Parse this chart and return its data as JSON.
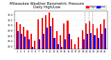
{
  "title": "Milwaukee Weather Barometric Pressure",
  "subtitle": "Daily High/Low",
  "background_color": "#ffffff",
  "bar_width": 0.4,
  "ylim": [
    29.1,
    30.55
  ],
  "ytick_labels": [
    "29.2",
    "29.4",
    "29.6",
    "29.8",
    "30.0",
    "30.2",
    "30.4"
  ],
  "ytick_values": [
    29.2,
    29.4,
    29.6,
    29.8,
    30.0,
    30.2,
    30.4
  ],
  "high_color": "#ff0000",
  "low_color": "#0000ff",
  "dashed_line_color": "#999999",
  "categories": [
    "1",
    "2",
    "3",
    "4",
    "5",
    "6",
    "7",
    "8",
    "9",
    "10",
    "11",
    "12",
    "13",
    "14",
    "15",
    "16",
    "17",
    "18",
    "19",
    "20",
    "21",
    "22",
    "23",
    "24",
    "25"
  ],
  "highs": [
    30.12,
    30.05,
    29.95,
    29.82,
    29.68,
    29.42,
    30.22,
    30.28,
    30.38,
    30.48,
    30.28,
    29.78,
    29.62,
    30.08,
    30.18,
    29.48,
    29.28,
    29.55,
    29.82,
    30.08,
    30.15,
    30.05,
    29.88,
    30.05,
    30.22
  ],
  "lows": [
    29.78,
    29.68,
    29.58,
    29.48,
    29.18,
    29.08,
    29.48,
    29.68,
    29.92,
    29.98,
    29.52,
    29.28,
    29.18,
    29.48,
    29.68,
    29.02,
    29.02,
    29.12,
    29.48,
    29.68,
    29.72,
    29.62,
    29.52,
    29.68,
    29.88
  ],
  "dashed_lines": [
    18.5,
    19.5,
    20.5
  ],
  "legend_high": "High",
  "legend_low": "Low",
  "title_fontsize": 3.8,
  "tick_fontsize": 2.5,
  "legend_fontsize": 2.8
}
